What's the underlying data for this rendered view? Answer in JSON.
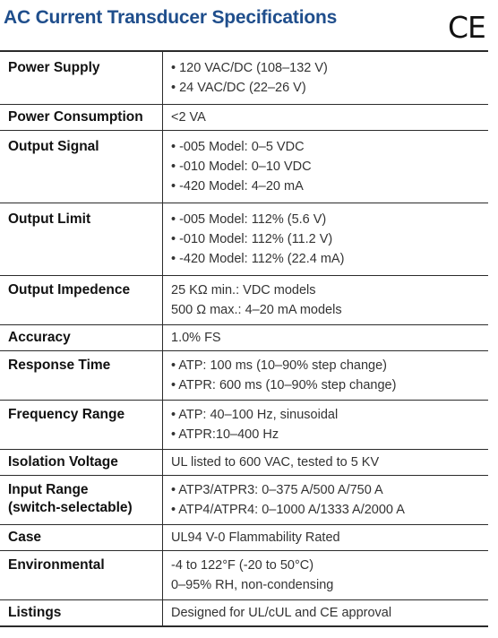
{
  "title": "AC Current Transducer Specifications",
  "mark": "CE",
  "rows": [
    {
      "label": [
        "Power Supply"
      ],
      "values": [
        "• 120 VAC/DC (108–132 V)",
        "• 24 VAC/DC (22–26 V)"
      ]
    },
    {
      "label": [
        "Power Consumption"
      ],
      "values": [
        "<2 VA"
      ]
    },
    {
      "label": [
        "Output Signal"
      ],
      "values": [
        "• -005 Model: 0–5 VDC",
        "• -010 Model: 0–10 VDC",
        "• -420 Model: 4–20 mA"
      ]
    },
    {
      "label": [
        "Output Limit"
      ],
      "values": [
        "• -005 Model: 112% (5.6 V)",
        "• -010 Model: 112% (11.2 V)",
        "• -420 Model: 112% (22.4 mA)"
      ]
    },
    {
      "label": [
        "Output Impedence"
      ],
      "values": [
        "25 KΩ min.: VDC models",
        "500 Ω max.: 4–20 mA models"
      ]
    },
    {
      "label": [
        "Accuracy"
      ],
      "values": [
        "1.0% FS"
      ]
    },
    {
      "label": [
        "Response Time"
      ],
      "values": [
        "• ATP: 100 ms (10–90% step change)",
        "• ATPR: 600 ms (10–90% step change)"
      ]
    },
    {
      "label": [
        "Frequency Range"
      ],
      "values": [
        "• ATP: 40–100 Hz, sinusoidal",
        "• ATPR:10–400 Hz"
      ]
    },
    {
      "label": [
        "Isolation Voltage"
      ],
      "values": [
        "UL listed to 600 VAC, tested to 5 KV"
      ]
    },
    {
      "label": [
        "Input Range",
        "(switch-selectable)"
      ],
      "values": [
        "• ATP3/ATPR3: 0–375 A/500 A/750 A",
        "• ATP4/ATPR4: 0–1000 A/1333 A/2000 A"
      ]
    },
    {
      "label": [
        "Case"
      ],
      "values": [
        "UL94 V-0 Flammability Rated"
      ]
    },
    {
      "label": [
        "Environmental"
      ],
      "values": [
        "-4 to 122°F (-20 to 50°C)",
        "0–95% RH, non-condensing"
      ]
    },
    {
      "label": [
        "Listings"
      ],
      "values": [
        "Designed for UL/cUL and CE approval"
      ]
    }
  ]
}
